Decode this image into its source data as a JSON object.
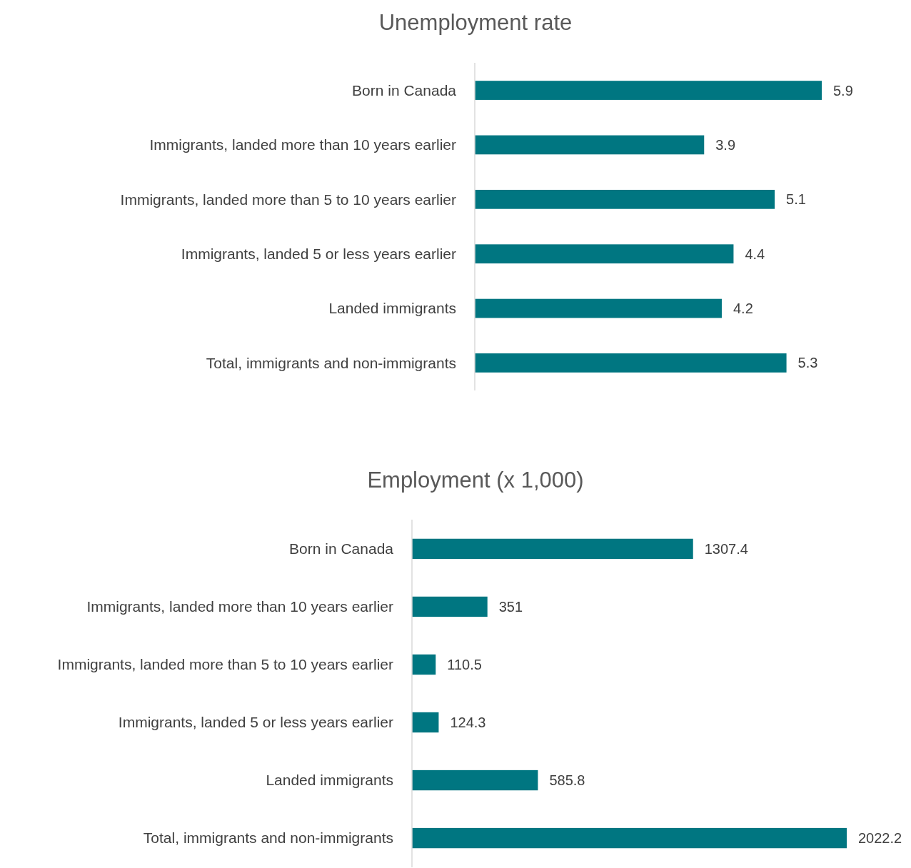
{
  "chart_data": [
    {
      "type": "bar",
      "orientation": "horizontal",
      "title": "Unemployment rate",
      "categories": [
        "Born in Canada",
        "Immigrants, landed more than 10 years earlier",
        "Immigrants, landed more than 5 to 10 years earlier",
        "Immigrants, landed 5 or less years earlier",
        "Landed immigrants",
        "Total, immigrants and non-immigrants"
      ],
      "values": [
        5.9,
        3.9,
        5.1,
        4.4,
        4.2,
        5.3
      ],
      "color": "#007681",
      "data_labels": true
    },
    {
      "type": "bar",
      "orientation": "horizontal",
      "title": "Employment (x 1,000)",
      "categories": [
        "Born in Canada",
        "Immigrants, landed more than 10 years earlier",
        "Immigrants, landed more than 5 to 10 years earlier",
        "Immigrants, landed 5 or less years earlier",
        "Landed immigrants",
        "Total, immigrants and non-immigrants"
      ],
      "values": [
        1307.4,
        351,
        110.5,
        124.3,
        585.8,
        2022.2
      ],
      "color": "#007681",
      "data_labels": true
    }
  ]
}
